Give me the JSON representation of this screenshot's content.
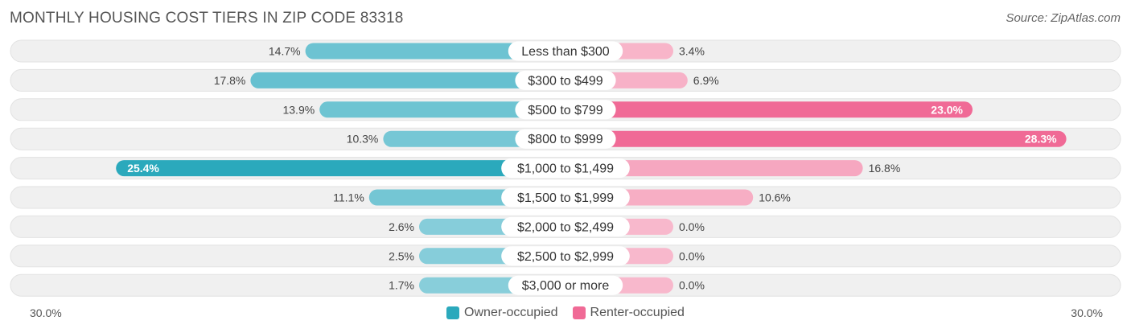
{
  "title": "MONTHLY HOUSING COST TIERS IN ZIP CODE 83318",
  "source": "Source: ZipAtlas.com",
  "colors": {
    "owner": "#4DB6C8",
    "owner_dark": "#2BA9BC",
    "renter": "#F59AB6",
    "renter_dark": "#F06A96",
    "row_bg": "#F0F0F0"
  },
  "axis": {
    "left_label": "30.0%",
    "right_label": "30.0%"
  },
  "legend": {
    "owner": "Owner-occupied",
    "renter": "Renter-occupied"
  },
  "chart_data": {
    "type": "bar",
    "orientation": "diverging-horizontal",
    "xlim": [
      -30,
      30
    ],
    "categories": [
      "Less than $300",
      "$300 to $499",
      "$500 to $799",
      "$800 to $999",
      "$1,000 to $1,499",
      "$1,500 to $1,999",
      "$2,000 to $2,499",
      "$2,500 to $2,999",
      "$3,000 or more"
    ],
    "series": [
      {
        "name": "Owner-occupied",
        "values": [
          14.7,
          17.8,
          13.9,
          10.3,
          25.4,
          11.1,
          2.6,
          2.5,
          1.7
        ],
        "labels": [
          "14.7%",
          "17.8%",
          "13.9%",
          "10.3%",
          "25.4%",
          "11.1%",
          "2.6%",
          "2.5%",
          "1.7%"
        ]
      },
      {
        "name": "Renter-occupied",
        "values": [
          3.4,
          6.9,
          23.0,
          28.3,
          16.8,
          10.6,
          0.0,
          0.0,
          0.0
        ],
        "labels": [
          "3.4%",
          "6.9%",
          "23.0%",
          "28.3%",
          "16.8%",
          "10.6%",
          "0.0%",
          "0.0%",
          "0.0%"
        ]
      }
    ],
    "legend_position": "bottom"
  }
}
